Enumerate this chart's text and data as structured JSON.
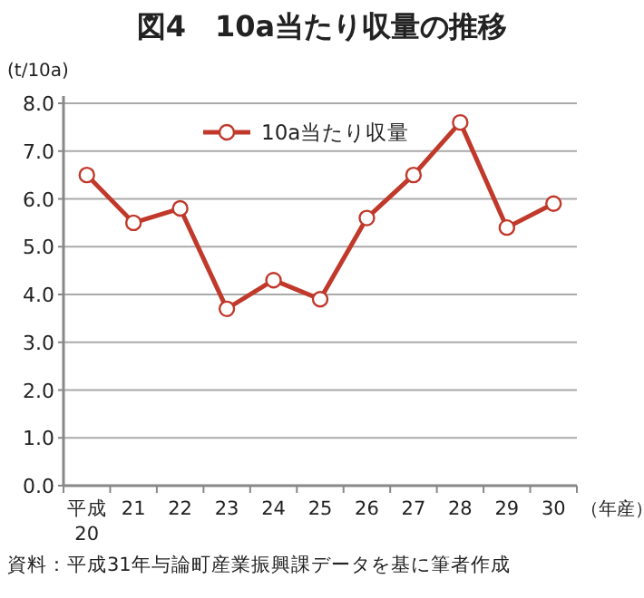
{
  "chart_data": {
    "type": "line",
    "title": "図4　10a当たり収量の推移",
    "ylabel": "(t/10a)",
    "xlabel": "（年産）",
    "categories": [
      "平成\n20",
      "21",
      "22",
      "23",
      "24",
      "25",
      "26",
      "27",
      "28",
      "29",
      "30"
    ],
    "series": [
      {
        "name": "10a当たり収量",
        "color": "#c0392b",
        "values": [
          6.5,
          5.5,
          5.8,
          3.7,
          4.3,
          3.9,
          5.6,
          6.5,
          7.6,
          5.4,
          5.9
        ]
      }
    ],
    "ylim": [
      0,
      8
    ],
    "yticks": [
      {
        "value": 0,
        "label": "0.0"
      },
      {
        "value": 1,
        "label": "1.0"
      },
      {
        "value": 2,
        "label": "2.0"
      },
      {
        "value": 3,
        "label": "3.0"
      },
      {
        "value": 4,
        "label": "4.0"
      },
      {
        "value": 5,
        "label": "5.0"
      },
      {
        "value": 6,
        "label": "6.0"
      },
      {
        "value": 7,
        "label": "7.0"
      },
      {
        "value": 8,
        "label": "8.0"
      }
    ],
    "grid": "y",
    "legend": "top",
    "marker": "circle",
    "line_style": "solid",
    "annotations": [
      "資料：平成31年与論町産業振興課データを基に筆者作成"
    ]
  }
}
